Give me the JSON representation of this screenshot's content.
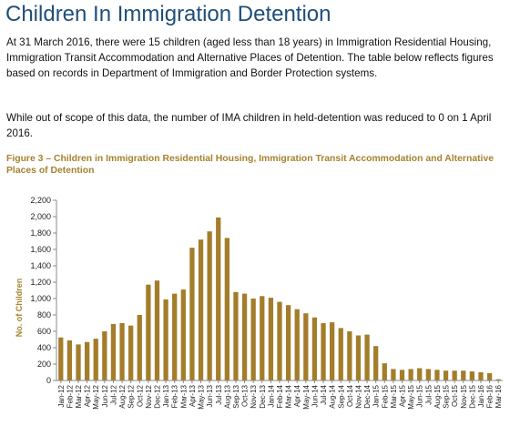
{
  "page": {
    "title": "Children In Immigration Detention",
    "paragraph1": "At 31 March 2016, there were 15 children (aged less than 18 years) in Immigration Residential Housing, Immigration Transit Accommodation and Alternative Places of Detention. The table below reflects figures based on records in Department of Immigration and Border Protection systems.",
    "paragraph2": "While out of scope of this data, the number of IMA children in held-detention was reduced to 0 on 1 April 2016.",
    "figure_title": "Figure 3 – Children in Immigration Residential Housing, Immigration Transit Accommodation and Alternative Places of Detention"
  },
  "colors": {
    "bar": "#a37d2a",
    "ylabel": "#a6822e",
    "axis": "#888888",
    "title": "#1f4e79"
  },
  "chart_data": {
    "type": "bar",
    "title": "",
    "xlabel": "",
    "ylabel": "No. of Children",
    "ylim": [
      0,
      2200
    ],
    "yticks": [
      0,
      200,
      400,
      600,
      800,
      1000,
      1200,
      1400,
      1600,
      1800,
      2000,
      2200
    ],
    "ytick_labels": [
      "0",
      "200",
      "400",
      "600",
      "800",
      "1,000",
      "1,200",
      "1,400",
      "1,600",
      "1,800",
      "2,000",
      "2,200"
    ],
    "grid": false,
    "legend": "none",
    "categories": [
      "Jan-12",
      "Feb-12",
      "Mar-12",
      "Apr-12",
      "May-12",
      "Jun-12",
      "Jul-12",
      "Aug-12",
      "Sep-12",
      "Oct-12",
      "Nov-12",
      "Dec-12",
      "Jan-13",
      "Feb-13",
      "Mar-13",
      "Apr-13",
      "May-13",
      "Jun-13",
      "Jul-13",
      "Aug-13",
      "Sep-13",
      "Oct-13",
      "Nov-13",
      "Dec-13",
      "Jan-14",
      "Feb-14",
      "Mar-14",
      "Apr-14",
      "May-14",
      "Jun-14",
      "Jul-14",
      "Aug-14",
      "Sep-14",
      "Oct-14",
      "Nov-14",
      "Dec-14",
      "Jan-15",
      "Feb-15",
      "Mar-15",
      "Apr-15",
      "May-15",
      "Jun-15",
      "Jul-15",
      "Aug-15",
      "Sep-15",
      "Oct-15",
      "Nov-15",
      "Dec-15",
      "Jan-16",
      "Feb-16",
      "Mar-16"
    ],
    "values": [
      525,
      490,
      440,
      470,
      510,
      600,
      690,
      700,
      670,
      800,
      1170,
      1220,
      990,
      1060,
      1110,
      1620,
      1720,
      1820,
      1990,
      1740,
      1080,
      1060,
      1000,
      1030,
      1010,
      960,
      920,
      870,
      820,
      770,
      700,
      710,
      640,
      600,
      550,
      560,
      420,
      210,
      140,
      130,
      140,
      150,
      140,
      130,
      120,
      120,
      120,
      110,
      100,
      90,
      15
    ],
    "xtick_labels": [
      "Jan-12",
      "Feb-12",
      "Mar-12",
      "Apr-12",
      "May-12",
      "Jun-12",
      "Jul-12",
      "Aug-12",
      "Sep-12",
      "Oct-12",
      "Nov-12",
      "Dec-12",
      "Jan-13",
      "Feb-13",
      "Mar-13",
      "Apr-13",
      "May-13",
      "Jun-13",
      "Jul-13",
      "Aug-13",
      "Sep-13",
      "Oct-13",
      "Nov-13",
      "Dec-13",
      "Jan-14",
      "Feb-14",
      "Mar-14",
      "Apr-14",
      "May-14",
      "Jun-14",
      "Jul-14",
      "Aug-14",
      "Sep-14",
      "Oct-14",
      "Nov-14",
      "Dec-14",
      "Jan-15",
      "Feb-15",
      "Mar-15",
      "Apr-15",
      "May-15",
      "Jun-15",
      "Jul-15",
      "Aug-15",
      "Sep-15",
      "Oct-15",
      "Nov-15",
      "Dec-15",
      "Jan-16",
      "Feb-16",
      "Mar-16"
    ]
  }
}
